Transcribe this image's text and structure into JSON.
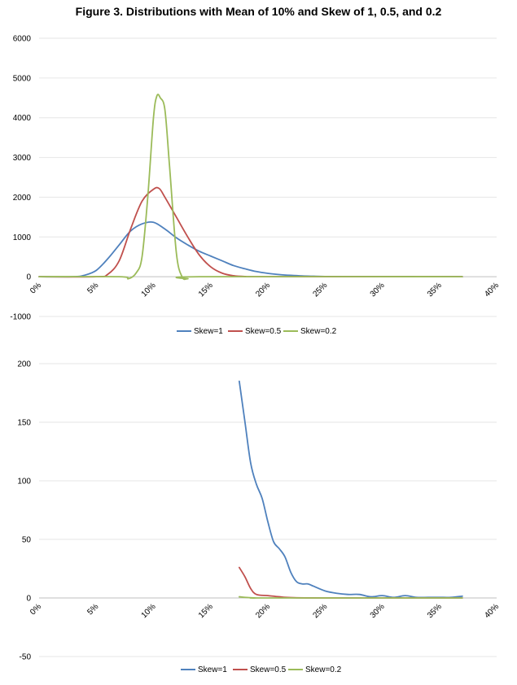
{
  "title": "Figure 3. Distributions with Mean of 10% and Skew of 1, 0.5, and 0.2",
  "chart_data": [
    {
      "type": "line",
      "xlim": [
        0,
        40
      ],
      "ylim": [
        -1000,
        6000
      ],
      "y_ticks": [
        6000,
        5000,
        4000,
        3000,
        2000,
        1000,
        0,
        -1000
      ],
      "x_ticks": [
        "0%",
        "5%",
        "10%",
        "15%",
        "20%",
        "25%",
        "30%",
        "35%",
        "40%"
      ],
      "grid": true,
      "legend": "bottom",
      "series": [
        {
          "name": "Skew=1",
          "color": "#4f81bd",
          "x": [
            0,
            3,
            4,
            5,
            6,
            7,
            8,
            9,
            10,
            11,
            12,
            13,
            14,
            15,
            16,
            17,
            18,
            19,
            20,
            21,
            22,
            23,
            24,
            25,
            27,
            30,
            33,
            37
          ],
          "y": [
            0,
            0,
            40,
            160,
            450,
            800,
            1150,
            1330,
            1370,
            1200,
            980,
            800,
            640,
            520,
            400,
            280,
            200,
            130,
            85,
            55,
            35,
            20,
            12,
            6,
            3,
            2,
            1,
            0
          ]
        },
        {
          "name": "Skew=0.5",
          "color": "#c0504d",
          "x": [
            0,
            5,
            6,
            7,
            8,
            9,
            10,
            10.5,
            11,
            12,
            13,
            14,
            15,
            16,
            17,
            18,
            20,
            37
          ],
          "y": [
            0,
            0,
            60,
            400,
            1200,
            1900,
            2200,
            2220,
            2000,
            1500,
            1000,
            550,
            250,
            90,
            25,
            5,
            0,
            0
          ]
        },
        {
          "name": "Skew=0.2",
          "color": "#9bbb59",
          "x": [
            0,
            7,
            7.8,
            8.5,
            9,
            9.5,
            10,
            10.3,
            10.6,
            11,
            11.4,
            12,
            12.5,
            13,
            14,
            37
          ],
          "y": [
            0,
            0,
            -50,
            100,
            500,
            2000,
            4000,
            4550,
            4500,
            4200,
            2800,
            600,
            0,
            -50,
            0,
            0
          ]
        }
      ]
    },
    {
      "type": "line",
      "xlim": [
        0,
        40
      ],
      "ylim": [
        -50,
        200
      ],
      "y_ticks": [
        200,
        150,
        100,
        50,
        0,
        -50
      ],
      "x_ticks": [
        "0%",
        "5%",
        "10%",
        "15%",
        "20%",
        "25%",
        "30%",
        "35%",
        "40%"
      ],
      "grid": true,
      "legend": "bottom",
      "series": [
        {
          "name": "Skew=1",
          "color": "#4f81bd",
          "x": [
            17.5,
            18,
            18.5,
            19,
            19.5,
            20,
            20.5,
            21,
            21.5,
            22,
            22.5,
            23,
            23.5,
            24,
            25,
            26,
            27,
            28,
            29,
            30,
            31,
            32,
            33,
            34,
            35,
            36,
            37
          ],
          "y": [
            185,
            150,
            115,
            97,
            85,
            65,
            48,
            42,
            35,
            22,
            14,
            12,
            12,
            10,
            6,
            4,
            3,
            3,
            1,
            2,
            0.5,
            2,
            0.5,
            0.5,
            0.5,
            0.5,
            1.5
          ]
        },
        {
          "name": "Skew=0.5",
          "color": "#c0504d",
          "x": [
            17.5,
            18,
            18.5,
            19,
            20,
            21,
            22,
            25,
            37
          ],
          "y": [
            26,
            18,
            8,
            3,
            2,
            1,
            0.3,
            0,
            0
          ]
        },
        {
          "name": "Skew=0.2",
          "color": "#9bbb59",
          "x": [
            17.5,
            18,
            19,
            20,
            37
          ],
          "y": [
            1,
            0.5,
            0,
            0,
            0
          ]
        }
      ]
    }
  ]
}
